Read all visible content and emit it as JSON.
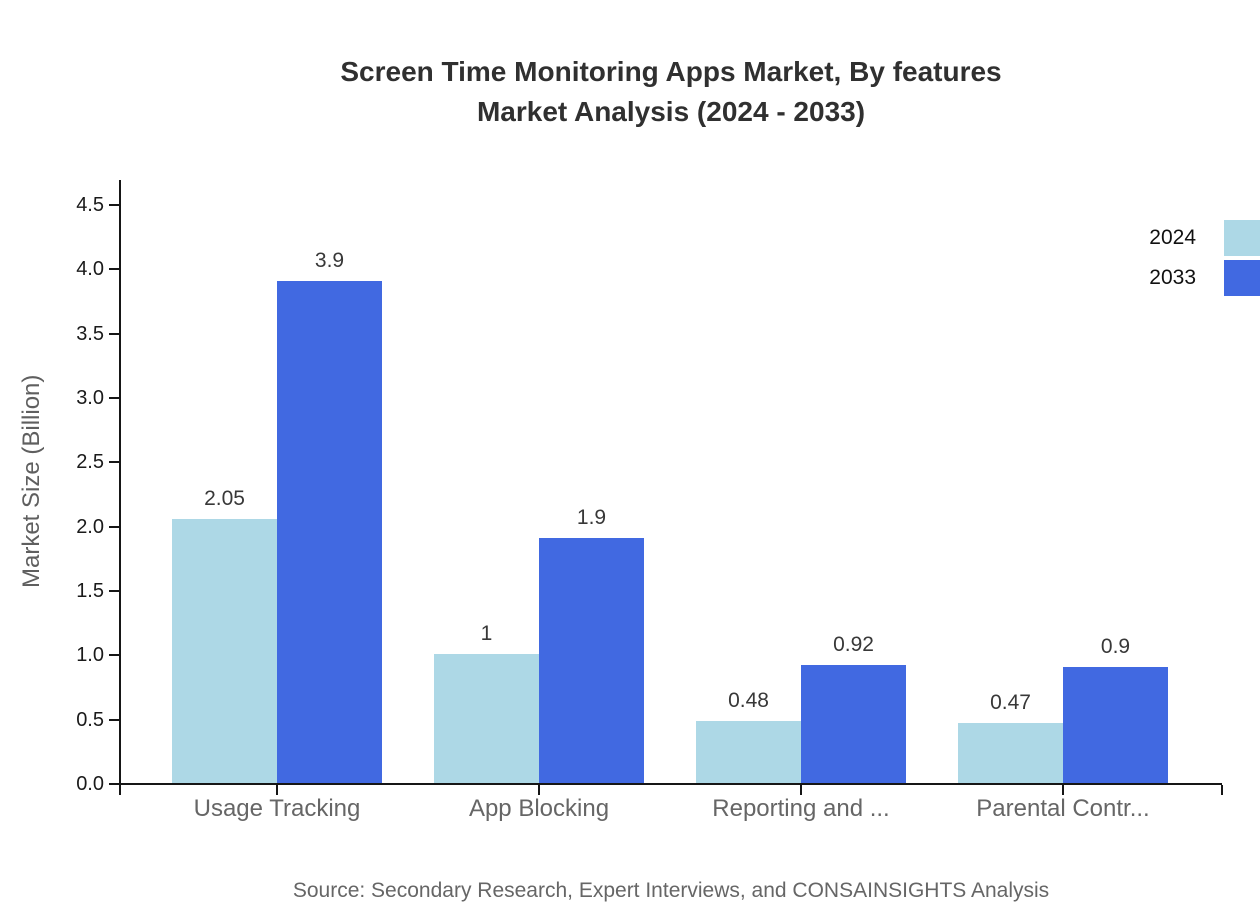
{
  "title": {
    "line1": "Screen Time Monitoring Apps Market, By features",
    "line2": "Market Analysis (2024 - 2033)"
  },
  "source": "Source: Secondary Research, Expert Interviews, and CONSAINSIGHTS Analysis",
  "colors": {
    "series_2024": "#add8e6",
    "series_2033": "#4169e1",
    "axis": "#161616",
    "category_label": "#666666",
    "title_text": "#303030"
  },
  "chart_data": {
    "type": "bar",
    "title": "Screen Time Monitoring Apps Market, By features Market Analysis (2024 - 2033)",
    "categories": [
      "Usage Tracking",
      "App Blocking",
      "Reporting and ...",
      "Parental Contr..."
    ],
    "series": [
      {
        "name": "2024",
        "color": "#add8e6",
        "values": [
          2.05,
          1,
          0.48,
          0.47
        ],
        "value_labels": [
          "2.05",
          "1",
          "0.48",
          "0.47"
        ]
      },
      {
        "name": "2033",
        "color": "#4169e1",
        "values": [
          3.9,
          1.9,
          0.92,
          0.9
        ],
        "value_labels": [
          "3.9",
          "1.9",
          "0.92",
          "0.9"
        ]
      }
    ],
    "xlabel": "",
    "ylabel": "Market Size (Billion)",
    "ylim": [
      0,
      4.7
    ],
    "yticks": [
      0.0,
      0.5,
      1.0,
      1.5,
      2.0,
      2.5,
      3.0,
      3.5,
      4.0,
      4.5
    ],
    "ytick_labels": [
      "0.0",
      "0.5",
      "1.0",
      "1.5",
      "2.0",
      "2.5",
      "3.0",
      "3.5",
      "4.0",
      "4.5"
    ],
    "grid": false,
    "legend_position": "top-right",
    "bar_group_mode": "grouped"
  }
}
